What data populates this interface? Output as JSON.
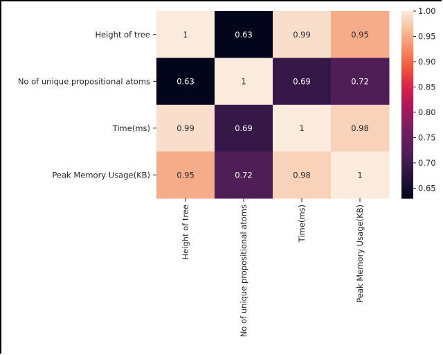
{
  "chart_data": {
    "type": "heatmap",
    "labels": [
      "Height of tree",
      "No of unique propositional atoms",
      "Time(ms)",
      "Peak Memory Usage(KB)"
    ],
    "matrix": [
      [
        1,
        0.63,
        0.99,
        0.95
      ],
      [
        0.63,
        1,
        0.69,
        0.72
      ],
      [
        0.99,
        0.69,
        1,
        0.98
      ],
      [
        0.95,
        0.72,
        0.98,
        1
      ]
    ],
    "annotations": [
      [
        "1",
        "0.63",
        "0.99",
        "0.95"
      ],
      [
        "0.63",
        "1",
        "0.69",
        "0.72"
      ],
      [
        "0.99",
        "0.69",
        "1",
        "0.98"
      ],
      [
        "0.95",
        "0.72",
        "0.98",
        "1"
      ]
    ],
    "colormap": "rocket",
    "vmin": 0.63,
    "vmax": 1.0,
    "colorbar_ticks": [
      "0.65",
      "0.70",
      "0.75",
      "0.80",
      "0.85",
      "0.90",
      "0.95",
      "1.00"
    ],
    "colorbar_tick_values": [
      0.65,
      0.7,
      0.75,
      0.8,
      0.85,
      0.9,
      0.95,
      1.0
    ]
  }
}
